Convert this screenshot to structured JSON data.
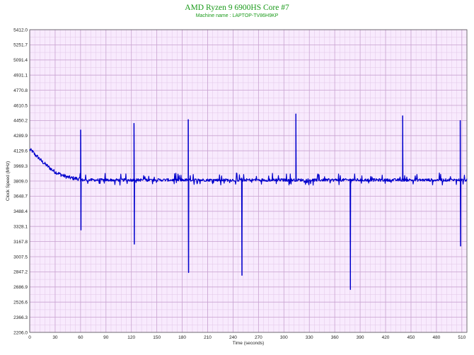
{
  "chart_data": {
    "type": "line",
    "title": "AMD Ryzen 9 6900HS Core #7",
    "subtitle": "Machine name : LAPTOP-TV86H9KP",
    "xlabel": "Time (seconds)",
    "ylabel": "Clock Speed (MHz)",
    "xlim": [
      0,
      516
    ],
    "ylim": [
      2206.0,
      5412.0
    ],
    "x_ticks": [
      0,
      30,
      60,
      90,
      120,
      150,
      180,
      210,
      240,
      270,
      300,
      330,
      360,
      390,
      420,
      450,
      480,
      510
    ],
    "y_ticks": [
      "2206.0",
      "2366.3",
      "2526.6",
      "2686.9",
      "2847.2",
      "3007.5",
      "3167.8",
      "3328.1",
      "3488.4",
      "3648.7",
      "3809.0",
      "3969.3",
      "4129.6",
      "4289.9",
      "4450.2",
      "4610.5",
      "4770.8",
      "4931.1",
      "5091.4",
      "5251.7",
      "5412.0"
    ],
    "grid": true,
    "baseline": 3820,
    "series": [
      {
        "color": "#0000cc",
        "points": [
          [
            0,
            4140
          ],
          [
            3,
            4125
          ],
          [
            6,
            4090
          ],
          [
            10,
            4060
          ],
          [
            14,
            4020
          ],
          [
            18,
            3990
          ],
          [
            22,
            3960
          ],
          [
            26,
            3930
          ],
          [
            30,
            3905
          ],
          [
            35,
            3885
          ],
          [
            40,
            3865
          ],
          [
            45,
            3850
          ],
          [
            50,
            3840
          ],
          [
            55,
            3835
          ],
          [
            59,
            3830
          ]
        ],
        "spikes": [
          {
            "x": 60,
            "high": 4350,
            "low": 3290
          },
          {
            "x": 123,
            "high": 4420,
            "low": 3140
          },
          {
            "x": 187,
            "high": 4460,
            "low": 2840
          },
          {
            "x": 250,
            "high": 3840,
            "low": 2810
          },
          {
            "x": 314,
            "high": 4520,
            "low": 3820
          },
          {
            "x": 378,
            "high": 3830,
            "low": 2660
          },
          {
            "x": 440,
            "high": 4500,
            "low": 3820
          },
          {
            "x": 508,
            "high": 4450,
            "low": 3120
          }
        ]
      }
    ]
  }
}
